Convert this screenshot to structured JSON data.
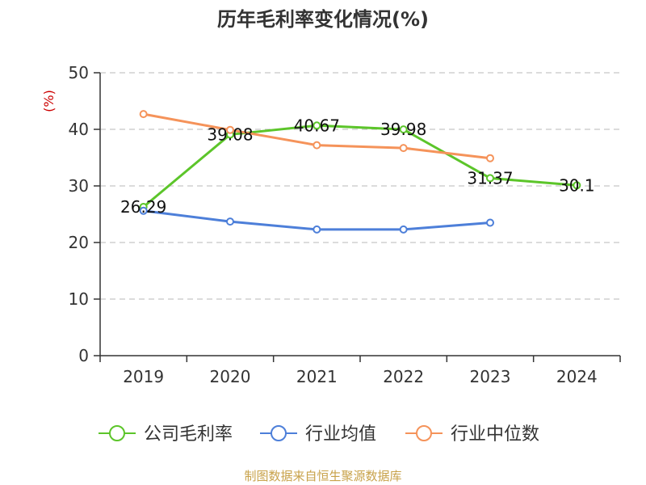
{
  "chart_data": {
    "type": "line",
    "title": "历年毛利率变化情况(%)",
    "ylabel": "(%)",
    "categories": [
      "2019",
      "2020",
      "2021",
      "2022",
      "2023",
      "2024"
    ],
    "ylim": [
      0,
      50
    ],
    "yticks": [
      0,
      10,
      20,
      30,
      40,
      50
    ],
    "grid": true,
    "legend_position": "bottom",
    "series": [
      {
        "name": "公司毛利率",
        "color": "#5cc52a",
        "values": [
          26.29,
          39.08,
          40.67,
          39.98,
          31.37,
          30.1
        ],
        "labels": [
          "26.29",
          "39.08",
          "40.67",
          "39.98",
          "31.37",
          "30.1"
        ]
      },
      {
        "name": "行业均值",
        "color": "#4d7fd9",
        "values": [
          25.6,
          23.7,
          22.3,
          22.3,
          23.5,
          null
        ]
      },
      {
        "name": "行业中位数",
        "color": "#f5935a",
        "values": [
          42.7,
          39.9,
          37.2,
          36.7,
          34.9,
          null
        ]
      }
    ]
  },
  "footer": "制图数据来自恒生聚源数据库"
}
